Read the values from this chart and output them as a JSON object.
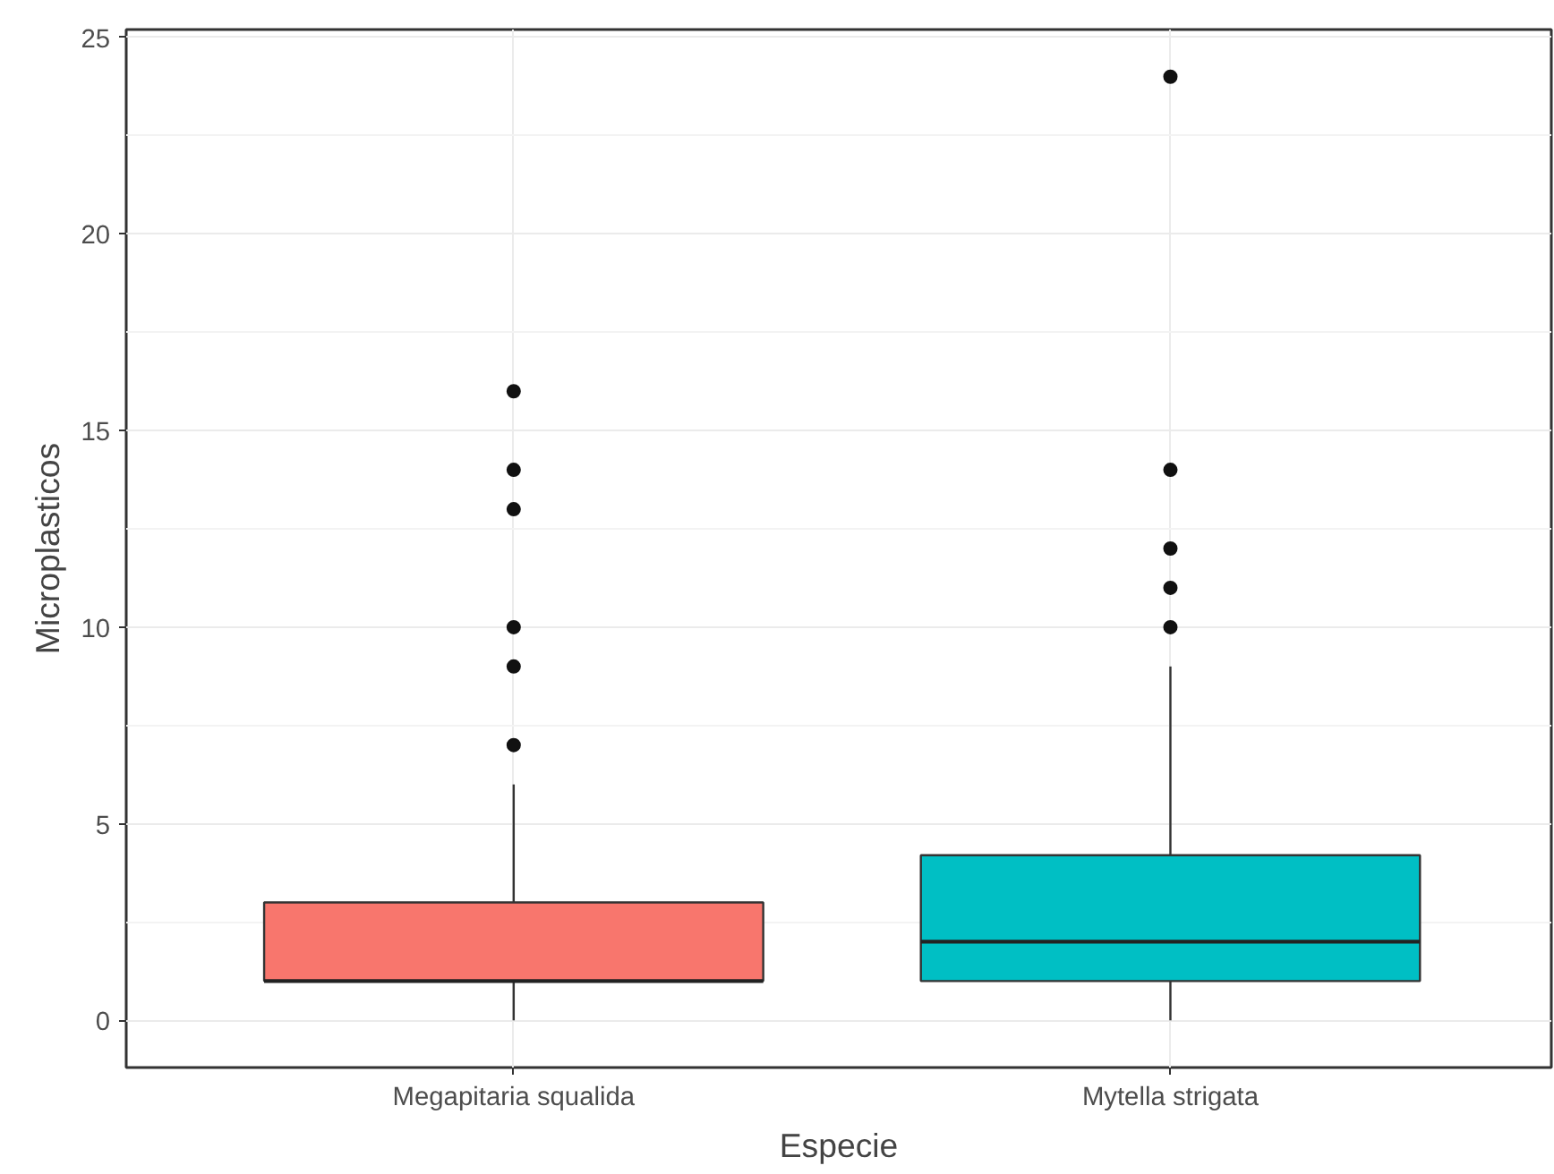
{
  "chart_data": {
    "type": "box",
    "xlabel": "Especie",
    "ylabel": "Microplasticos",
    "categories": [
      "Megapitaria squalida",
      "Mytella strigata"
    ],
    "boxes": [
      {
        "low": 0,
        "q1": 1,
        "median": 1,
        "q3": 3,
        "high": 6,
        "outliers": [
          7,
          9,
          10,
          13,
          14,
          16
        ]
      },
      {
        "low": 0,
        "q1": 1,
        "median": 2,
        "q3": 4.2,
        "high": 9,
        "outliers": [
          10,
          11,
          12,
          14,
          24
        ]
      }
    ],
    "colors": [
      "#f8766d",
      "#00bfc4"
    ],
    "ylim": [
      -1.2,
      25.2
    ],
    "yticks": [
      0,
      5,
      10,
      15,
      20,
      25
    ],
    "grid": true
  }
}
